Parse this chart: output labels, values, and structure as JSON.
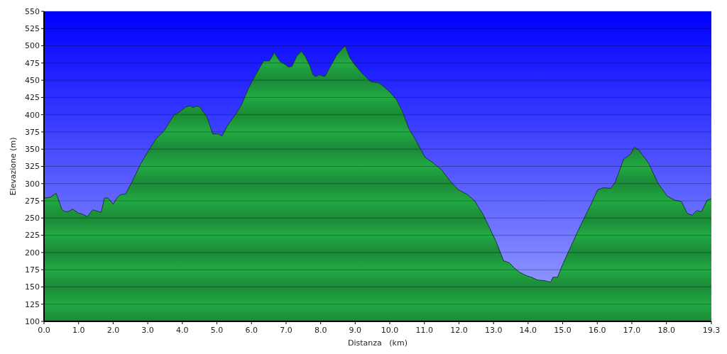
{
  "chart_data": {
    "type": "area",
    "xlabel": "Distanza   (km)",
    "ylabel": "Elevazione (m)",
    "xlim": [
      0,
      19.3
    ],
    "ylim": [
      100,
      550
    ],
    "xticks": [
      {
        "value": 0,
        "label": "0.0"
      },
      {
        "value": 1,
        "label": "1.0"
      },
      {
        "value": 2,
        "label": "2.0"
      },
      {
        "value": 3,
        "label": "3.0"
      },
      {
        "value": 4,
        "label": "4.0"
      },
      {
        "value": 5,
        "label": "5.0"
      },
      {
        "value": 6,
        "label": "6.0"
      },
      {
        "value": 7,
        "label": "7.0"
      },
      {
        "value": 8,
        "label": "8.0"
      },
      {
        "value": 9,
        "label": "9.0"
      },
      {
        "value": 10,
        "label": "10.0"
      },
      {
        "value": 11,
        "label": "11.0"
      },
      {
        "value": 12,
        "label": "12.0"
      },
      {
        "value": 13,
        "label": "13.0"
      },
      {
        "value": 14,
        "label": "14.0"
      },
      {
        "value": 15,
        "label": "15.0"
      },
      {
        "value": 16,
        "label": "16.0"
      },
      {
        "value": 17,
        "label": "17.0"
      },
      {
        "value": 18,
        "label": "18.0"
      },
      19.3
    ],
    "yticks": [
      100,
      125,
      150,
      175,
      200,
      225,
      250,
      275,
      300,
      325,
      350,
      375,
      400,
      425,
      450,
      475,
      500,
      525,
      550
    ],
    "grid": "y",
    "x": [
      0,
      0.18,
      0.35,
      0.52,
      0.63,
      0.73,
      0.83,
      1.0,
      1.1,
      1.25,
      1.41,
      1.54,
      1.65,
      1.75,
      1.85,
      2.0,
      2.12,
      2.22,
      2.36,
      2.56,
      2.8,
      3.0,
      3.24,
      3.48,
      3.76,
      3.89,
      4.1,
      4.23,
      4.3,
      4.38,
      4.49,
      4.71,
      4.88,
      5.05,
      5.15,
      5.29,
      5.56,
      5.71,
      5.91,
      6.12,
      6.35,
      6.52,
      6.66,
      6.83,
      6.97,
      7.07,
      7.17,
      7.31,
      7.44,
      7.55,
      7.68,
      7.78,
      7.85,
      7.96,
      8.06,
      8.13,
      8.26,
      8.47,
      8.71,
      8.84,
      8.98,
      9.18,
      9.45,
      9.69,
      9.8,
      10.0,
      10.2,
      10.37,
      10.55,
      10.75,
      11.02,
      11.23,
      11.5,
      11.74,
      11.98,
      12.25,
      12.45,
      12.7,
      12.91,
      13.08,
      13.29,
      13.46,
      13.59,
      13.76,
      13.97,
      14.1,
      14.27,
      14.48,
      14.65,
      14.72,
      14.85,
      15.02,
      15.23,
      15.43,
      15.67,
      15.84,
      16.01,
      16.18,
      16.39,
      16.52,
      16.76,
      16.97,
      17.07,
      17.21,
      17.48,
      17.75,
      18.02,
      18.23,
      18.43,
      18.6,
      18.74,
      18.88,
      19.01,
      19.18,
      19.3
    ],
    "series": [
      {
        "color": "#22aa44",
        "values": [
          279,
          280,
          286,
          262,
          259,
          260,
          263,
          257,
          256,
          252,
          262,
          260,
          258,
          279,
          279,
          270,
          280,
          284,
          285,
          304,
          329,
          346,
          365,
          377,
          400,
          403,
          411,
          413,
          410,
          412,
          412,
          397,
          372,
          372,
          369,
          383,
          402,
          414,
          438,
          458,
          478,
          478,
          490,
          477,
          473,
          469,
          470,
          485,
          492,
          485,
          472,
          458,
          455,
          458,
          456,
          456,
          468,
          487,
          500,
          483,
          473,
          461,
          448,
          446,
          442,
          433,
          421,
          404,
          380,
          363,
          338,
          331,
          320,
          304,
          291,
          284,
          275,
          255,
          233,
          215,
          188,
          185,
          178,
          171,
          166,
          164,
          160,
          159,
          157,
          164,
          164,
          185,
          208,
          230,
          255,
          272,
          291,
          294,
          293,
          302,
          335,
          343,
          353,
          348,
          330,
          301,
          282,
          276,
          274,
          257,
          254,
          261,
          259,
          276,
          278
        ]
      }
    ]
  }
}
